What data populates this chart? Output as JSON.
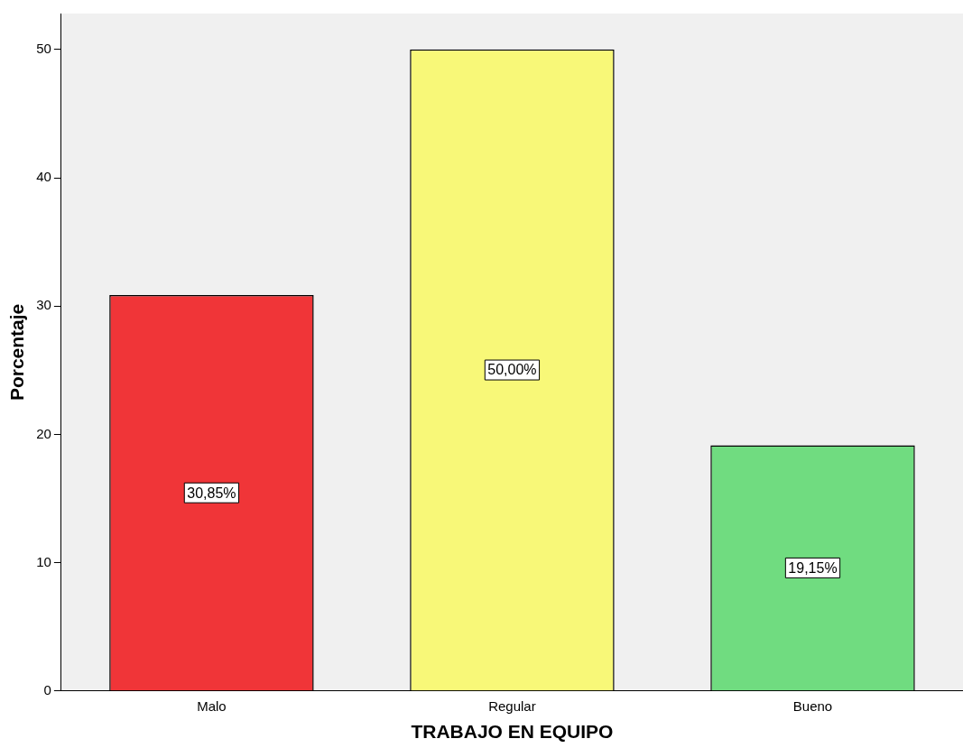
{
  "chart_data": {
    "type": "bar",
    "xlabel": "TRABAJO EN EQUIPO",
    "ylabel": "Porcentaje",
    "categories": [
      "Malo",
      "Regular",
      "Bueno"
    ],
    "values": [
      30.85,
      50.0,
      19.15
    ],
    "colors": [
      "#f03538",
      "#f8f878",
      "#70dc80"
    ],
    "value_labels": [
      "30,85%",
      "50,00%",
      "19,15%"
    ],
    "ylim": [
      0,
      52.8
    ],
    "yticks": [
      0,
      10,
      20,
      30,
      40,
      50
    ],
    "grid": false,
    "legend": false
  }
}
